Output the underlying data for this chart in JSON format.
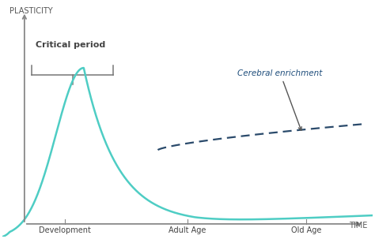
{
  "background_color": "#ffffff",
  "plasticity_label": "PLASTICITY",
  "time_label": "TIME",
  "xlabel_ticks": [
    "Development",
    "Adult Age",
    "Old Age"
  ],
  "xlabel_tick_x": [
    0.17,
    0.5,
    0.82
  ],
  "critical_period_label": "Critical period",
  "cerebral_enrichment_label": "Cerebral enrichment",
  "main_curve_color": "#4ecdc4",
  "dashed_curve_color": "#2a4a6b",
  "axis_color": "#888888",
  "text_color": "#444444",
  "annotation_color": "#1e4d7b",
  "bracket_color": "#777777",
  "axis_label_color": "#555555"
}
